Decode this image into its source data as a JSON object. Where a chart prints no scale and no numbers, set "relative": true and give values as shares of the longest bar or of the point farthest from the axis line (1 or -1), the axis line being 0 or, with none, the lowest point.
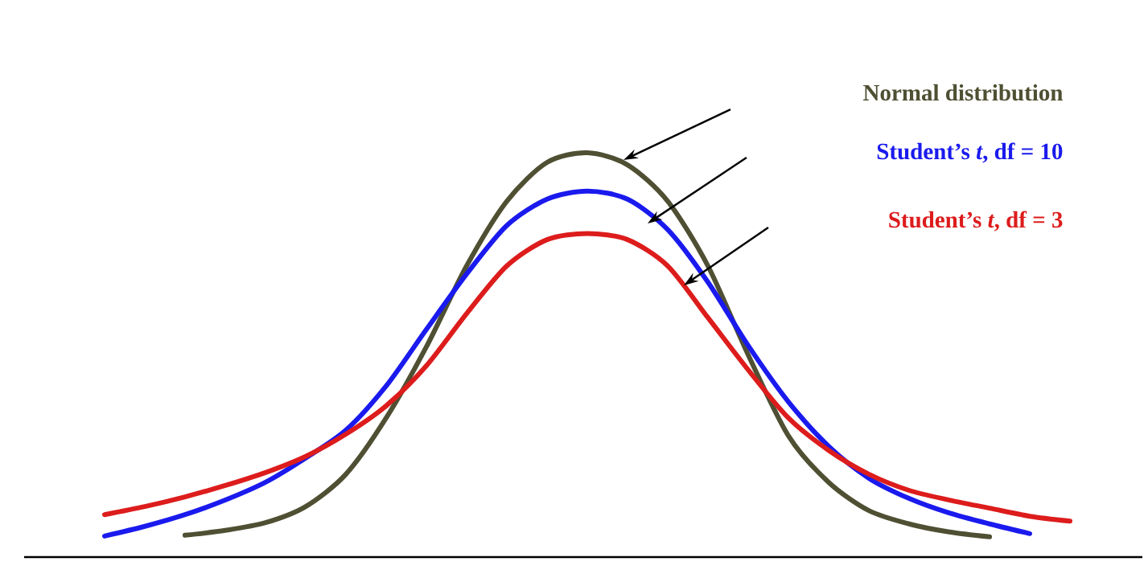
{
  "chart_data": {
    "type": "line",
    "relative": true,
    "marker": "none",
    "line_style": "solid",
    "categories": [
      null,
      null,
      null,
      null,
      null,
      null,
      null,
      null,
      null,
      null,
      null,
      null,
      null,
      null,
      null,
      null,
      null,
      null,
      null,
      null,
      null,
      null,
      null,
      null,
      null
    ],
    "series": [
      {
        "name": "Normal distribution",
        "color": "#4f4f33",
        "values": [
          null,
          null,
          0.054,
          0.066,
          0.085,
          0.125,
          0.205,
          0.344,
          0.52,
          0.72,
          0.88,
          0.976,
          1.0,
          0.97,
          0.88,
          0.72,
          0.5,
          0.3,
          0.185,
          0.115,
          0.082,
          0.062,
          0.05,
          null,
          null
        ]
      },
      {
        "name": "Student’s *t*, df = 10",
        "color": "#1a1aee",
        "values": [
          0.052,
          0.076,
          0.105,
          0.141,
          0.185,
          0.245,
          0.314,
          0.423,
          0.563,
          0.7,
          0.82,
          0.885,
          0.905,
          0.885,
          0.81,
          0.68,
          0.523,
          0.384,
          0.274,
          0.195,
          0.145,
          0.109,
          0.082,
          0.058,
          null
        ]
      },
      {
        "name": "Student’s *t*, df = 3",
        "color": "#dd1c1c",
        "values": [
          0.105,
          0.125,
          0.149,
          0.177,
          0.209,
          0.249,
          0.304,
          0.374,
          0.473,
          0.602,
          0.72,
          0.785,
          0.8,
          0.785,
          0.72,
          0.592,
          0.463,
          0.344,
          0.264,
          0.205,
          0.165,
          0.141,
          0.121,
          0.101,
          0.089
        ]
      }
    ]
  }
}
